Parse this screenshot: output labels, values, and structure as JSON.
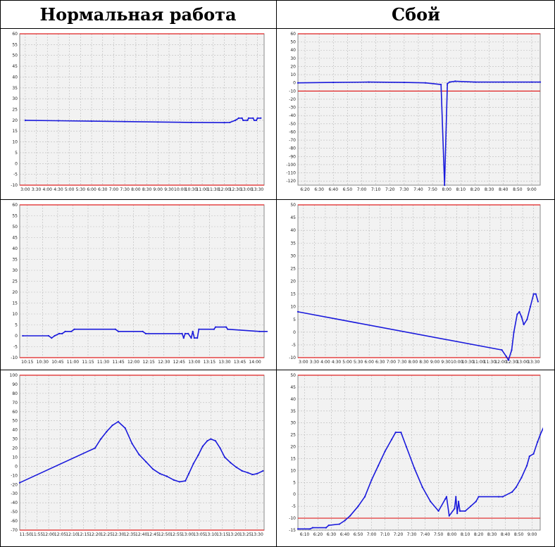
{
  "headers": {
    "normal": "Нормальная работа",
    "fault": "Сбой"
  },
  "chart_data": [
    {
      "type": "line",
      "ylim": [
        -10,
        60
      ],
      "yticks": [
        60,
        55,
        50,
        45,
        40,
        35,
        30,
        25,
        20,
        15,
        10,
        5,
        0,
        -5,
        -10
      ],
      "xticks": [
        "3:00",
        "3:30",
        "4:00",
        "4:30",
        "5:00",
        "5:30",
        "6:00",
        "6:30",
        "7:00",
        "7:30",
        "8:00",
        "8:30",
        "9:00",
        "9:30",
        "10:00",
        "10:30",
        "11:00",
        "11:30",
        "12:00",
        "12:30",
        "13:00",
        "13:30"
      ],
      "limit_lines": [
        60,
        -10
      ],
      "series": [
        {
          "points": [
            [
              0,
              20
            ],
            [
              3,
              19.8
            ],
            [
              6,
              19.6
            ],
            [
              9,
              19.4
            ],
            [
              12,
              19.2
            ],
            [
              15,
              19.0
            ],
            [
              18,
              18.9
            ],
            [
              18.5,
              19
            ],
            [
              19,
              20
            ],
            [
              19.3,
              21
            ],
            [
              19.6,
              21
            ],
            [
              19.7,
              20
            ],
            [
              20.1,
              20
            ],
            [
              20.2,
              21
            ],
            [
              20.6,
              21
            ],
            [
              20.7,
              20
            ],
            [
              20.9,
              20
            ],
            [
              21,
              21
            ],
            [
              21.3,
              21
            ]
          ]
        }
      ]
    },
    {
      "type": "line",
      "ylim": [
        -125,
        60
      ],
      "yticks": [
        60,
        50,
        40,
        30,
        20,
        10,
        0,
        -10,
        -20,
        -30,
        -40,
        -50,
        -60,
        -70,
        -80,
        -90,
        -100,
        -110,
        -120
      ],
      "xticks": [
        "6:20",
        "6:30",
        "6:40",
        "6:50",
        "7:00",
        "7:10",
        "7:20",
        "7:30",
        "7:40",
        "7:50",
        "8:00",
        "8:10",
        "8:20",
        "8:30",
        "8:40",
        "8:50",
        "9:00"
      ],
      "limit_lines": [
        60,
        -10
      ],
      "series": [
        {
          "points": [
            [
              -0.5,
              0
            ],
            [
              2,
              0.5
            ],
            [
              4.5,
              1
            ],
            [
              7,
              0.5
            ],
            [
              8.5,
              0
            ],
            [
              9.6,
              -2
            ],
            [
              9.85,
              -125
            ],
            [
              10.05,
              -1
            ],
            [
              10.2,
              1
            ],
            [
              10.6,
              2
            ],
            [
              12,
              1
            ],
            [
              14,
              1
            ],
            [
              16,
              1
            ],
            [
              16.6,
              1
            ]
          ]
        }
      ]
    },
    {
      "type": "line",
      "ylim": [
        -10,
        60
      ],
      "yticks": [
        60,
        55,
        50,
        45,
        40,
        35,
        30,
        25,
        20,
        15,
        10,
        5,
        0,
        -5,
        -10
      ],
      "xticks": [
        "10:15",
        "10:30",
        "10:45",
        "11:00",
        "11:15",
        "11:30",
        "11:45",
        "12:00",
        "12:15",
        "12:30",
        "12:45",
        "13:00",
        "13:15",
        "13:30",
        "13:45",
        "14:00"
      ],
      "limit_lines": [
        60,
        -10
      ],
      "series": [
        {
          "points": [
            [
              -0.3,
              0
            ],
            [
              1.4,
              0
            ],
            [
              1.6,
              -1
            ],
            [
              1.8,
              0
            ],
            [
              2.1,
              1
            ],
            [
              2.3,
              1
            ],
            [
              2.5,
              2
            ],
            [
              2.9,
              2
            ],
            [
              3.1,
              3
            ],
            [
              5.8,
              3
            ],
            [
              6,
              2
            ],
            [
              7.6,
              2
            ],
            [
              7.8,
              1
            ],
            [
              10.2,
              1
            ],
            [
              10.3,
              -1
            ],
            [
              10.4,
              1
            ],
            [
              10.6,
              1
            ],
            [
              10.8,
              -1
            ],
            [
              10.9,
              2
            ],
            [
              11,
              -1
            ],
            [
              11.2,
              -1
            ],
            [
              11.3,
              3
            ],
            [
              12.3,
              3
            ],
            [
              12.4,
              4
            ],
            [
              13.1,
              4
            ],
            [
              13.2,
              3
            ],
            [
              15.3,
              2
            ],
            [
              15.9,
              2
            ]
          ]
        }
      ]
    },
    {
      "type": "line",
      "ylim": [
        -10,
        50
      ],
      "yticks": [
        50,
        45,
        40,
        35,
        30,
        25,
        20,
        15,
        10,
        5,
        0,
        -5,
        -10
      ],
      "xticks": [
        "3:00",
        "3:30",
        "4:00",
        "4:30",
        "5:00",
        "5:30",
        "6:00",
        "6:30",
        "7:00",
        "7:30",
        "8:00",
        "8:30",
        "9:00",
        "9:30",
        "10:00",
        "10:30",
        "11:00",
        "11:30",
        "12:00",
        "12:30",
        "13:00",
        "13:30"
      ],
      "limit_lines": [
        50,
        -10
      ],
      "series": [
        {
          "points": [
            [
              -0.5,
              8
            ],
            [
              18.1,
              -7
            ],
            [
              18.5,
              -9.5
            ],
            [
              18.7,
              -11
            ],
            [
              19.0,
              -7
            ],
            [
              19.2,
              0
            ],
            [
              19.5,
              7
            ],
            [
              19.7,
              8
            ],
            [
              19.9,
              6
            ],
            [
              20.1,
              3
            ],
            [
              20.4,
              5
            ],
            [
              20.7,
              10
            ],
            [
              21.0,
              15
            ],
            [
              21.2,
              15
            ],
            [
              21.4,
              12
            ]
          ]
        }
      ]
    },
    {
      "type": "line",
      "ylim": [
        -70,
        100
      ],
      "yticks": [
        100,
        90,
        80,
        70,
        60,
        50,
        40,
        30,
        20,
        10,
        0,
        -10,
        -20,
        -30,
        -40,
        -50,
        -60,
        -70
      ],
      "xticks": [
        "11:50",
        "11:55",
        "12:00",
        "12:05",
        "12:10",
        "12:15",
        "12:20",
        "12:25",
        "12:30",
        "12:35",
        "12:40",
        "12:45",
        "12:50",
        "12:55",
        "13:00",
        "13:05",
        "13:10",
        "13:15",
        "13:20",
        "13:25",
        "13:30"
      ],
      "limit_lines": [
        100,
        -70
      ],
      "series": [
        {
          "points": [
            [
              -0.5,
              -18
            ],
            [
              6,
              20
            ],
            [
              6.5,
              30
            ],
            [
              7,
              38
            ],
            [
              7.5,
              45
            ],
            [
              8,
              49
            ],
            [
              8.6,
              42
            ],
            [
              9.2,
              25
            ],
            [
              9.8,
              13
            ],
            [
              10.4,
              5
            ],
            [
              11,
              -3
            ],
            [
              11.6,
              -8
            ],
            [
              12.2,
              -11
            ],
            [
              12.8,
              -15
            ],
            [
              13.3,
              -17
            ],
            [
              13.8,
              -16
            ],
            [
              14.1,
              -8
            ],
            [
              14.5,
              3
            ],
            [
              14.9,
              12
            ],
            [
              15.3,
              22
            ],
            [
              15.7,
              28
            ],
            [
              16,
              30
            ],
            [
              16.4,
              28
            ],
            [
              16.8,
              20
            ],
            [
              17.2,
              10
            ],
            [
              17.7,
              4
            ],
            [
              18.2,
              -1
            ],
            [
              18.7,
              -5
            ],
            [
              19.2,
              -7
            ],
            [
              19.6,
              -9
            ],
            [
              20,
              -8
            ],
            [
              20.5,
              -5
            ]
          ]
        }
      ]
    },
    {
      "type": "line",
      "ylim": [
        -15,
        50
      ],
      "yticks": [
        50,
        45,
        40,
        35,
        30,
        25,
        20,
        15,
        10,
        5,
        0,
        -5,
        -10,
        -15
      ],
      "xticks": [
        "6:10",
        "6:20",
        "6:30",
        "6:40",
        "6:50",
        "7:00",
        "7:10",
        "7:20",
        "7:30",
        "7:40",
        "7:50",
        "8:00",
        "8:10",
        "8:20",
        "8:30",
        "8:40",
        "8:50",
        "9:00"
      ],
      "limit_lines": [
        50,
        -10
      ],
      "series": [
        {
          "points": [
            [
              -0.5,
              -14.5
            ],
            [
              0.4,
              -14.5
            ],
            [
              0.6,
              -14
            ],
            [
              1.6,
              -14
            ],
            [
              1.8,
              -13
            ],
            [
              2.6,
              -12.5
            ],
            [
              3.0,
              -11
            ],
            [
              3.4,
              -9
            ],
            [
              4.0,
              -5
            ],
            [
              4.5,
              -1
            ],
            [
              5.0,
              6
            ],
            [
              5.5,
              12
            ],
            [
              6.0,
              18
            ],
            [
              6.5,
              23
            ],
            [
              6.8,
              26
            ],
            [
              7.2,
              26
            ],
            [
              7.6,
              20
            ],
            [
              8.2,
              11
            ],
            [
              8.8,
              3
            ],
            [
              9.4,
              -3
            ],
            [
              10.0,
              -7
            ],
            [
              10.5,
              -2
            ],
            [
              10.6,
              -1
            ],
            [
              10.8,
              -9
            ],
            [
              11.2,
              -6
            ],
            [
              11.3,
              -1
            ],
            [
              11.4,
              -8
            ],
            [
              11.5,
              -3
            ],
            [
              11.6,
              -7
            ],
            [
              12.0,
              -7
            ],
            [
              12.4,
              -5
            ],
            [
              12.8,
              -3
            ],
            [
              13.0,
              -1
            ],
            [
              14.5,
              -1
            ],
            [
              14.8,
              -1
            ],
            [
              15.5,
              1
            ],
            [
              15.8,
              3
            ],
            [
              16.2,
              7
            ],
            [
              16.6,
              12
            ],
            [
              16.8,
              16
            ],
            [
              17.1,
              17
            ],
            [
              17.4,
              22
            ],
            [
              17.6,
              25
            ],
            [
              18,
              30
            ]
          ]
        }
      ]
    }
  ]
}
